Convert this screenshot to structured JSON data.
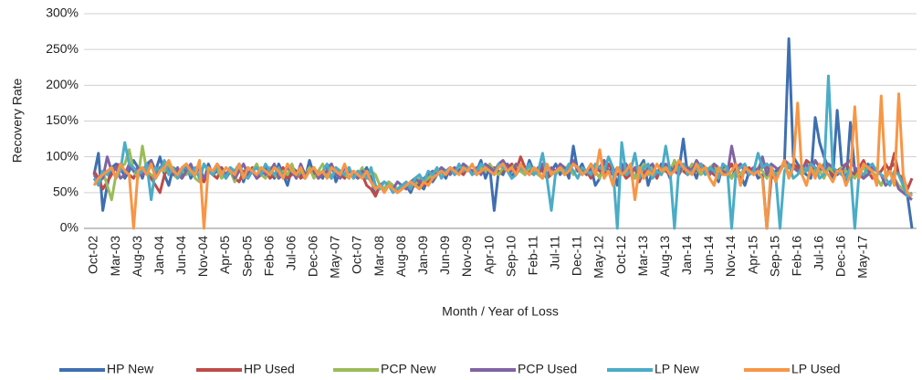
{
  "chart_data": {
    "type": "line",
    "y_axis_title": "Recovery Rate",
    "x_axis_title": "Month / Year of Loss",
    "ylim": [
      0,
      300
    ],
    "yticks": [
      {
        "value": 0,
        "label": "0%"
      },
      {
        "value": 50,
        "label": "50%"
      },
      {
        "value": 100,
        "label": "100%"
      },
      {
        "value": 150,
        "label": "150%"
      },
      {
        "value": 200,
        "label": "200%"
      },
      {
        "value": 250,
        "label": "250%"
      },
      {
        "value": 300,
        "label": "300%"
      }
    ],
    "grid": true,
    "legend": "bottom",
    "categories": [
      "Oct-02",
      null,
      null,
      null,
      null,
      "Mar-03",
      null,
      null,
      null,
      null,
      "Aug-03",
      null,
      null,
      null,
      null,
      "Jan-04",
      null,
      null,
      null,
      null,
      "Jun-04",
      null,
      null,
      null,
      null,
      "Nov-04",
      null,
      null,
      null,
      null,
      "Apr-05",
      null,
      null,
      null,
      null,
      "Sep-05",
      null,
      null,
      null,
      null,
      "Feb-06",
      null,
      null,
      null,
      null,
      "Jul-06",
      null,
      null,
      null,
      null,
      "Dec-06",
      null,
      null,
      null,
      null,
      "May-07",
      null,
      null,
      null,
      null,
      "Oct-07",
      null,
      null,
      null,
      null,
      "Mar-08",
      null,
      null,
      null,
      null,
      "Aug-08",
      null,
      null,
      null,
      null,
      "Jan-09",
      null,
      null,
      null,
      null,
      "Jun-09",
      null,
      null,
      null,
      null,
      "Nov-09",
      null,
      null,
      null,
      null,
      "Apr-10",
      null,
      null,
      null,
      null,
      "Sep-10",
      null,
      null,
      null,
      null,
      "Feb-11",
      null,
      null,
      null,
      null,
      "Jul-11",
      null,
      null,
      null,
      null,
      "Dec-11",
      null,
      null,
      null,
      null,
      "May-12",
      null,
      null,
      null,
      null,
      "Oct-12",
      null,
      null,
      null,
      null,
      "Mar-13",
      null,
      null,
      null,
      null,
      "Aug-13",
      null,
      null,
      null,
      null,
      "Jan-14",
      null,
      null,
      null,
      null,
      "Jun-14",
      null,
      null,
      null,
      null,
      "Nov-14",
      null,
      null,
      null,
      null,
      "Apr-15",
      null,
      null,
      null,
      null,
      "Sep-15",
      null,
      null,
      null,
      null,
      "Feb-16",
      null,
      null,
      null,
      null,
      "Jul-16",
      null,
      null,
      null,
      null,
      "Dec-16",
      null,
      null,
      null,
      null,
      "May-17",
      null,
      null,
      null,
      null,
      null,
      null,
      null,
      null,
      null,
      null,
      null
    ],
    "series": [
      {
        "name": "HP New",
        "color": "#3f6fb0",
        "values": [
          75,
          105,
          25,
          60,
          85,
          90,
          88,
          70,
          80,
          95,
          85,
          70,
          90,
          95,
          80,
          100,
          75,
          60,
          85,
          80,
          75,
          90,
          70,
          80,
          85,
          65,
          90,
          75,
          80,
          85,
          70,
          80,
          75,
          90,
          65,
          85,
          80,
          70,
          75,
          85,
          80,
          70,
          90,
          75,
          60,
          85,
          80,
          75,
          70,
          95,
          75,
          80,
          70,
          85,
          90,
          65,
          80,
          75,
          85,
          70,
          80,
          75,
          85,
          70,
          45,
          60,
          55,
          65,
          60,
          50,
          55,
          60,
          50,
          65,
          60,
          55,
          70,
          65,
          75,
          80,
          70,
          85,
          75,
          80,
          90,
          85,
          75,
          80,
          95,
          70,
          85,
          25,
          80,
          75,
          90,
          70,
          85,
          80,
          75,
          95,
          80,
          75,
          85,
          70,
          80,
          90,
          75,
          85,
          70,
          115,
          80,
          90,
          75,
          85,
          60,
          70,
          95,
          80,
          85,
          60,
          90,
          75,
          80,
          70,
          85,
          95,
          60,
          80,
          75,
          90,
          85,
          70,
          95,
          80,
          125,
          75,
          85,
          70,
          90,
          80,
          75,
          85,
          65,
          90,
          80,
          70,
          85,
          75,
          60,
          80,
          85,
          70,
          75,
          0,
          70,
          80,
          85,
          90,
          265,
          100,
          90,
          80,
          75,
          70,
          155,
          120,
          100,
          85,
          70,
          165,
          90,
          60,
          148,
          80,
          75,
          70,
          90,
          85,
          80,
          75,
          70,
          85,
          90,
          75,
          60,
          45,
          0
        ]
      },
      {
        "name": "HP Used",
        "color": "#be4b48",
        "values": [
          80,
          70,
          55,
          65,
          75,
          85,
          90,
          80,
          75,
          70,
          85,
          75,
          80,
          70,
          60,
          50,
          75,
          85,
          80,
          75,
          70,
          80,
          75,
          85,
          70,
          65,
          80,
          75,
          70,
          85,
          75,
          80,
          70,
          65,
          80,
          75,
          85,
          70,
          75,
          80,
          70,
          75,
          80,
          85,
          70,
          75,
          80,
          70,
          75,
          85,
          80,
          70,
          75,
          80,
          70,
          85,
          75,
          70,
          80,
          75,
          70,
          75,
          60,
          55,
          45,
          60,
          55,
          60,
          55,
          50,
          55,
          60,
          55,
          60,
          65,
          60,
          65,
          70,
          75,
          80,
          75,
          80,
          85,
          80,
          75,
          85,
          80,
          75,
          80,
          85,
          80,
          85,
          75,
          80,
          85,
          90,
          80,
          100,
          85,
          80,
          75,
          85,
          80,
          70,
          75,
          80,
          85,
          75,
          80,
          90,
          85,
          75,
          80,
          70,
          85,
          80,
          75,
          90,
          80,
          75,
          80,
          70,
          75,
          85,
          65,
          80,
          75,
          80,
          70,
          85,
          80,
          75,
          85,
          90,
          80,
          75,
          85,
          80,
          90,
          85,
          80,
          75,
          70,
          85,
          80,
          90,
          75,
          70,
          80,
          85,
          75,
          80,
          85,
          90,
          70,
          75,
          80,
          95,
          85,
          90,
          85,
          80,
          95,
          90,
          85,
          80,
          90,
          85,
          75,
          80,
          85,
          90,
          80,
          75,
          85,
          95,
          80,
          70,
          75,
          80,
          90,
          80,
          105,
          75,
          70,
          55,
          70
        ]
      },
      {
        "name": "PCP New",
        "color": "#9bbb59",
        "values": [
          70,
          65,
          80,
          60,
          40,
          75,
          85,
          90,
          110,
          80,
          70,
          115,
          80,
          75,
          70,
          85,
          80,
          90,
          75,
          70,
          80,
          75,
          85,
          70,
          65,
          90,
          80,
          75,
          85,
          70,
          75,
          80,
          65,
          85,
          75,
          70,
          80,
          90,
          75,
          70,
          85,
          75,
          70,
          80,
          75,
          90,
          70,
          80,
          75,
          85,
          70,
          80,
          90,
          75,
          70,
          85,
          80,
          75,
          70,
          80,
          75,
          85,
          70,
          80,
          75,
          60,
          55,
          65,
          60,
          55,
          60,
          55,
          65,
          60,
          70,
          65,
          70,
          75,
          80,
          85,
          80,
          85,
          75,
          80,
          90,
          85,
          80,
          75,
          85,
          80,
          90,
          80,
          75,
          85,
          80,
          85,
          90,
          80,
          75,
          85,
          80,
          75,
          70,
          85,
          80,
          75,
          85,
          80,
          90,
          75,
          85,
          80,
          75,
          90,
          80,
          70,
          85,
          80,
          75,
          85,
          80,
          75,
          85,
          70,
          80,
          90,
          75,
          85,
          80,
          75,
          85,
          80,
          95,
          75,
          85,
          80,
          90,
          85,
          75,
          80,
          85,
          90,
          75,
          80,
          85,
          70,
          80,
          75,
          85,
          80,
          75,
          85,
          80,
          70,
          85,
          75,
          80,
          90,
          75,
          85,
          80,
          75,
          85,
          90,
          75,
          80,
          70,
          85,
          80,
          75,
          85,
          80,
          75,
          70,
          80,
          85,
          75,
          80,
          70,
          60,
          75,
          80,
          70,
          60,
          55,
          50,
          45
        ]
      },
      {
        "name": "PCP Used",
        "color": "#8064a2",
        "values": [
          75,
          65,
          70,
          100,
          80,
          85,
          70,
          75,
          90,
          80,
          85,
          75,
          80,
          95,
          70,
          85,
          90,
          80,
          75,
          85,
          70,
          80,
          90,
          75,
          85,
          70,
          80,
          75,
          90,
          80,
          75,
          85,
          70,
          80,
          90,
          75,
          80,
          70,
          85,
          75,
          80,
          90,
          70,
          75,
          85,
          80,
          70,
          90,
          75,
          80,
          85,
          70,
          75,
          80,
          90,
          75,
          70,
          85,
          80,
          75,
          70,
          80,
          75,
          65,
          55,
          60,
          65,
          60,
          55,
          65,
          60,
          55,
          65,
          70,
          65,
          70,
          75,
          80,
          75,
          85,
          80,
          75,
          85,
          80,
          90,
          85,
          80,
          85,
          75,
          90,
          85,
          80,
          90,
          95,
          85,
          80,
          90,
          85,
          80,
          75,
          85,
          80,
          90,
          75,
          85,
          80,
          90,
          85,
          80,
          95,
          80,
          85,
          75,
          90,
          80,
          85,
          95,
          80,
          75,
          85,
          80,
          90,
          75,
          85,
          80,
          70,
          85,
          90,
          75,
          80,
          90,
          85,
          80,
          75,
          90,
          85,
          80,
          95,
          85,
          80,
          75,
          90,
          85,
          80,
          75,
          115,
          85,
          90,
          80,
          75,
          85,
          80,
          100,
          75,
          90,
          85,
          80,
          95,
          90,
          85,
          80,
          85,
          90,
          75,
          95,
          85,
          80,
          90,
          85,
          75,
          80,
          90,
          95,
          85,
          80,
          70,
          75,
          85,
          80,
          75,
          60,
          65,
          70,
          55,
          50,
          45,
          40
        ]
      },
      {
        "name": "LP New",
        "color": "#4bacc6",
        "values": [
          70,
          60,
          80,
          75,
          85,
          70,
          80,
          120,
          90,
          85,
          75,
          80,
          90,
          40,
          85,
          80,
          95,
          75,
          85,
          70,
          80,
          90,
          75,
          85,
          70,
          90,
          80,
          75,
          85,
          80,
          70,
          85,
          80,
          90,
          75,
          70,
          80,
          85,
          75,
          90,
          80,
          75,
          85,
          70,
          90,
          80,
          75,
          85,
          70,
          80,
          85,
          75,
          80,
          90,
          70,
          85,
          80,
          75,
          85,
          70,
          80,
          75,
          70,
          85,
          60,
          55,
          65,
          60,
          50,
          55,
          60,
          65,
          55,
          70,
          75,
          65,
          80,
          75,
          85,
          70,
          80,
          85,
          75,
          90,
          80,
          85,
          75,
          80,
          90,
          85,
          80,
          75,
          90,
          85,
          80,
          70,
          75,
          85,
          80,
          90,
          75,
          80,
          105,
          70,
          25,
          80,
          85,
          75,
          90,
          80,
          70,
          85,
          80,
          75,
          90,
          85,
          80,
          100,
          85,
          0,
          120,
          75,
          80,
          105,
          70,
          85,
          90,
          70,
          80,
          75,
          115,
          80,
          0,
          85,
          90,
          75,
          80,
          85,
          90,
          75,
          85,
          80,
          70,
          90,
          85,
          0,
          80,
          85,
          90,
          75,
          80,
          105,
          85,
          90,
          85,
          75,
          0,
          80,
          90,
          70,
          75,
          85,
          80,
          90,
          85,
          70,
          75,
          213,
          85,
          80,
          75,
          70,
          85,
          0,
          80,
          75,
          85,
          90,
          80,
          75,
          70,
          60,
          80,
          75,
          60,
          45,
          50
        ]
      },
      {
        "name": "LP Used",
        "color": "#f79646",
        "values": [
          60,
          70,
          75,
          80,
          85,
          70,
          90,
          80,
          75,
          0,
          80,
          85,
          75,
          90,
          70,
          80,
          85,
          95,
          80,
          75,
          85,
          90,
          80,
          75,
          95,
          0,
          85,
          80,
          90,
          75,
          85,
          80,
          75,
          90,
          70,
          85,
          80,
          75,
          85,
          80,
          75,
          85,
          80,
          70,
          90,
          80,
          75,
          85,
          70,
          80,
          85,
          75,
          80,
          70,
          85,
          80,
          75,
          90,
          70,
          80,
          75,
          70,
          80,
          65,
          55,
          60,
          50,
          60,
          55,
          50,
          55,
          60,
          65,
          60,
          55,
          65,
          60,
          70,
          75,
          80,
          75,
          85,
          80,
          75,
          85,
          80,
          90,
          75,
          80,
          85,
          80,
          75,
          85,
          90,
          80,
          85,
          75,
          90,
          80,
          75,
          85,
          80,
          70,
          90,
          75,
          80,
          85,
          75,
          80,
          90,
          85,
          75,
          80,
          90,
          75,
          110,
          70,
          80,
          60,
          85,
          75,
          80,
          90,
          40,
          85,
          70,
          80,
          75,
          90,
          80,
          85,
          75,
          80,
          95,
          85,
          80,
          75,
          90,
          80,
          85,
          70,
          60,
          85,
          75,
          75,
          80,
          90,
          60,
          85,
          80,
          75,
          80,
          70,
          0,
          85,
          65,
          80,
          95,
          70,
          85,
          175,
          75,
          60,
          85,
          70,
          90,
          80,
          75,
          65,
          80,
          80,
          60,
          75,
          170,
          70,
          90,
          85,
          80,
          60,
          185,
          70,
          80,
          60,
          188,
          75,
          50,
          45
        ]
      }
    ]
  }
}
